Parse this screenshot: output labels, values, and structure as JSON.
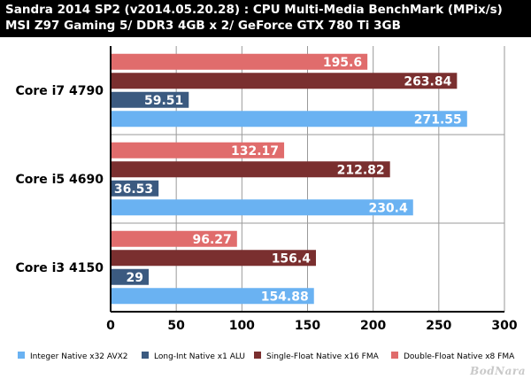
{
  "header": {
    "line1": "Sandra 2014 SP2 (v2014.05.20.28) : CPU Multi-Media BenchMark (MPix/s)",
    "line2": "MSI Z97 Gaming 5/ DDR3 4GB x 2/ GeForce GTX 780 Ti 3GB"
  },
  "watermark": "BodNara",
  "chart_data": {
    "type": "bar",
    "orientation": "horizontal",
    "title": "Sandra 2014 SP2 (v2014.05.20.28) : CPU Multi-Media BenchMark (MPix/s)",
    "categories": [
      "Core i7 4790",
      "Core i5 4690",
      "Core i3 4150"
    ],
    "series": [
      {
        "name": "Integer Native x32 AVX2",
        "color": "#6ab2f2",
        "values": [
          271.55,
          230.4,
          154.88
        ]
      },
      {
        "name": "Long-Int Native x1 ALU",
        "color": "#3b5a80",
        "values": [
          59.51,
          36.53,
          29
        ]
      },
      {
        "name": "Single-Float Native x16 FMA",
        "color": "#7a2f2f",
        "values": [
          263.84,
          212.82,
          156.4
        ]
      },
      {
        "name": "Double-Float Native x8 FMA",
        "color": "#e06c6c",
        "values": [
          195.6,
          132.17,
          96.27
        ]
      }
    ],
    "value_labels": [
      [
        "271.55",
        "230.4",
        "154.88"
      ],
      [
        "59.51",
        "36.53",
        "29"
      ],
      [
        "263.84",
        "212.82",
        "156.4"
      ],
      [
        "195.6",
        "132.17",
        "96.27"
      ]
    ],
    "xlim": [
      0,
      300
    ],
    "xticks": [
      0,
      50,
      100,
      150,
      200,
      250,
      300
    ],
    "grid": true,
    "legend_position": "bottom"
  }
}
